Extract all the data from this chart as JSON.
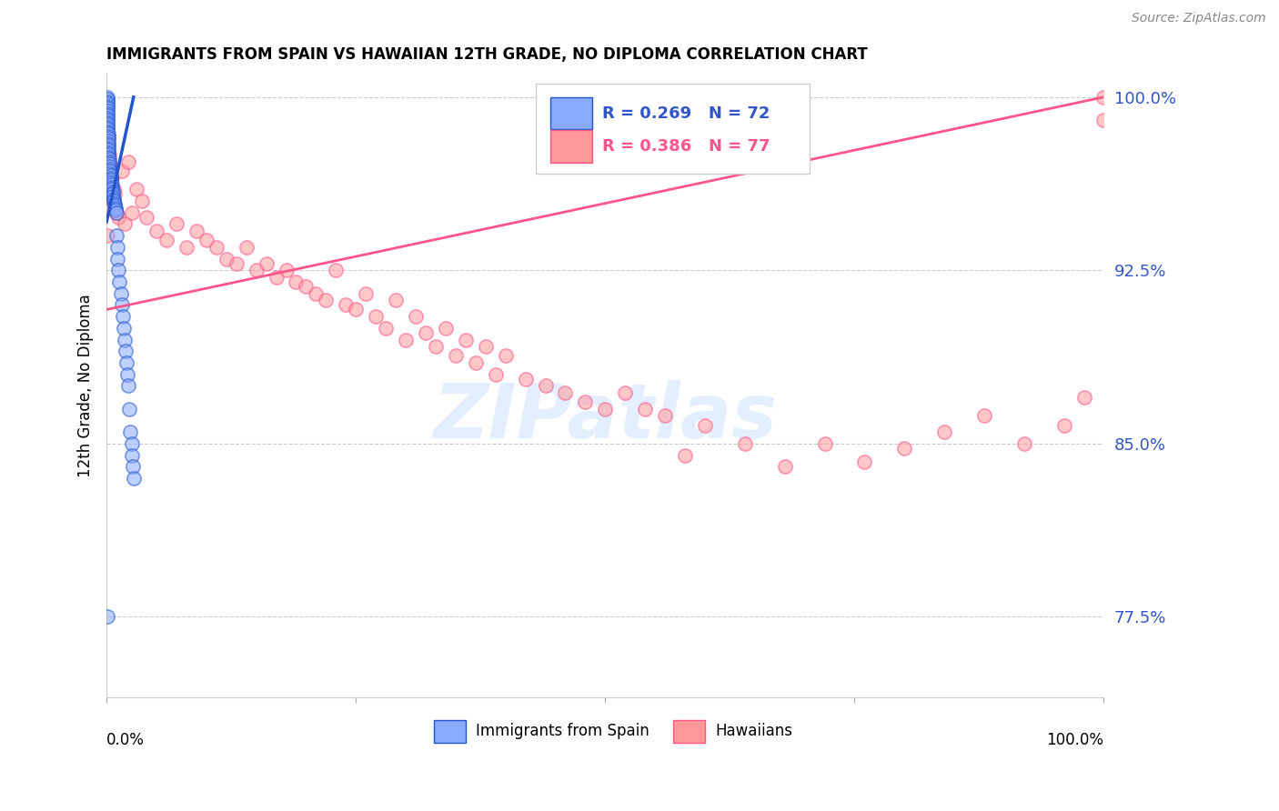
{
  "title": "IMMIGRANTS FROM SPAIN VS HAWAIIAN 12TH GRADE, NO DIPLOMA CORRELATION CHART",
  "source": "Source: ZipAtlas.com",
  "ylabel": "12th Grade, No Diploma",
  "x_min": 0.0,
  "x_max": 1.0,
  "y_min": 0.74,
  "y_max": 1.01,
  "yticks": [
    0.775,
    0.85,
    0.925,
    1.0
  ],
  "ytick_labels": [
    "77.5%",
    "85.0%",
    "92.5%",
    "100.0%"
  ],
  "legend_r1": "R = 0.269",
  "legend_n1": "N = 72",
  "legend_r2": "R = 0.386",
  "legend_n2": "N = 77",
  "blue_color": "#88AAFF",
  "pink_color": "#FF9999",
  "trendline_blue": "#2255CC",
  "trendline_pink": "#FF5588",
  "label1": "Immigrants from Spain",
  "label2": "Hawaiians",
  "watermark": "ZIPatlas",
  "blue_scatter_x": [
    0.001,
    0.001,
    0.001,
    0.001,
    0.001,
    0.001,
    0.001,
    0.001,
    0.001,
    0.001,
    0.001,
    0.001,
    0.001,
    0.001,
    0.001,
    0.001,
    0.002,
    0.002,
    0.002,
    0.002,
    0.002,
    0.002,
    0.002,
    0.002,
    0.002,
    0.002,
    0.002,
    0.003,
    0.003,
    0.003,
    0.003,
    0.003,
    0.003,
    0.003,
    0.004,
    0.004,
    0.004,
    0.004,
    0.005,
    0.005,
    0.005,
    0.006,
    0.006,
    0.006,
    0.007,
    0.007,
    0.008,
    0.008,
    0.009,
    0.009,
    0.01,
    0.01,
    0.011,
    0.011,
    0.012,
    0.013,
    0.014,
    0.015,
    0.016,
    0.017,
    0.018,
    0.019,
    0.02,
    0.021,
    0.022,
    0.023,
    0.024,
    0.025,
    0.025,
    0.026,
    0.027,
    0.001
  ],
  "blue_scatter_y": [
    1.0,
    0.999,
    0.998,
    0.997,
    0.996,
    0.995,
    0.994,
    0.993,
    0.992,
    0.991,
    0.99,
    0.989,
    0.988,
    0.987,
    0.986,
    0.985,
    0.984,
    0.983,
    0.982,
    0.981,
    0.98,
    0.979,
    0.978,
    0.977,
    0.976,
    0.975,
    0.974,
    0.973,
    0.972,
    0.971,
    0.97,
    0.969,
    0.968,
    0.967,
    0.966,
    0.965,
    0.964,
    0.963,
    0.962,
    0.961,
    0.96,
    0.959,
    0.958,
    0.957,
    0.956,
    0.955,
    0.954,
    0.953,
    0.952,
    0.951,
    0.95,
    0.94,
    0.935,
    0.93,
    0.925,
    0.92,
    0.915,
    0.91,
    0.905,
    0.9,
    0.895,
    0.89,
    0.885,
    0.88,
    0.875,
    0.865,
    0.855,
    0.85,
    0.845,
    0.84,
    0.835,
    0.775
  ],
  "pink_scatter_x": [
    0.001,
    0.001,
    0.002,
    0.003,
    0.003,
    0.004,
    0.005,
    0.006,
    0.007,
    0.008,
    0.01,
    0.012,
    0.015,
    0.018,
    0.022,
    0.025,
    0.03,
    0.035,
    0.04,
    0.05,
    0.06,
    0.07,
    0.08,
    0.09,
    0.1,
    0.11,
    0.12,
    0.13,
    0.14,
    0.15,
    0.16,
    0.17,
    0.18,
    0.19,
    0.2,
    0.21,
    0.22,
    0.23,
    0.24,
    0.25,
    0.26,
    0.27,
    0.28,
    0.29,
    0.3,
    0.31,
    0.32,
    0.33,
    0.34,
    0.35,
    0.36,
    0.37,
    0.38,
    0.39,
    0.4,
    0.42,
    0.44,
    0.46,
    0.48,
    0.5,
    0.52,
    0.54,
    0.56,
    0.58,
    0.6,
    0.64,
    0.68,
    0.72,
    0.76,
    0.8,
    0.84,
    0.88,
    0.92,
    0.96,
    0.98,
    1.0,
    1.0
  ],
  "pink_scatter_y": [
    0.96,
    0.94,
    0.958,
    0.975,
    0.952,
    0.97,
    0.965,
    0.955,
    0.96,
    0.958,
    0.95,
    0.948,
    0.968,
    0.945,
    0.972,
    0.95,
    0.96,
    0.955,
    0.948,
    0.942,
    0.938,
    0.945,
    0.935,
    0.942,
    0.938,
    0.935,
    0.93,
    0.928,
    0.935,
    0.925,
    0.928,
    0.922,
    0.925,
    0.92,
    0.918,
    0.915,
    0.912,
    0.925,
    0.91,
    0.908,
    0.915,
    0.905,
    0.9,
    0.912,
    0.895,
    0.905,
    0.898,
    0.892,
    0.9,
    0.888,
    0.895,
    0.885,
    0.892,
    0.88,
    0.888,
    0.878,
    0.875,
    0.872,
    0.868,
    0.865,
    0.872,
    0.865,
    0.862,
    0.845,
    0.858,
    0.85,
    0.84,
    0.85,
    0.842,
    0.848,
    0.855,
    0.862,
    0.85,
    0.858,
    0.87,
    0.99,
    1.0
  ],
  "blue_trend_x": [
    0.0,
    0.027
  ],
  "blue_trend_y": [
    0.946,
    1.0
  ],
  "pink_trend_x": [
    0.0,
    1.0
  ],
  "pink_trend_y": [
    0.908,
    1.0
  ]
}
